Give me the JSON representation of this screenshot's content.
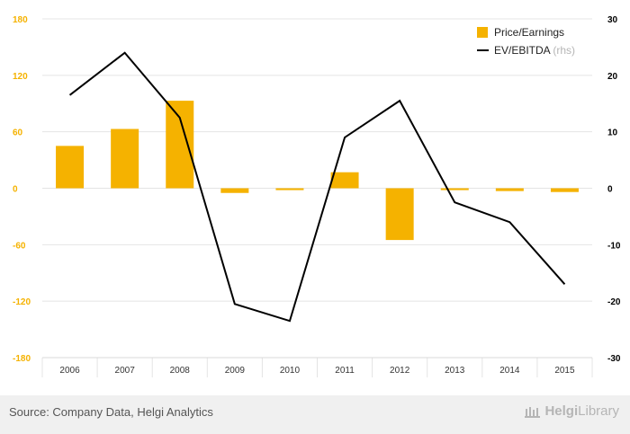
{
  "chart_data": {
    "type": "bar",
    "categories": [
      "2006",
      "2007",
      "2008",
      "2009",
      "2010",
      "2011",
      "2012",
      "2013",
      "2014",
      "2015"
    ],
    "series": [
      {
        "name": "Price/Earnings",
        "type": "bar",
        "axis": "left",
        "color": "#f5b200",
        "values": [
          45,
          63,
          93,
          -5,
          -2,
          17,
          -55,
          -2,
          -3,
          -4
        ]
      },
      {
        "name": "EV/EBITDA",
        "type": "line",
        "axis": "right",
        "color": "#000000",
        "values": [
          16.5,
          24,
          12.5,
          -20.5,
          -23.5,
          9,
          15.5,
          -2.5,
          -6,
          -17
        ]
      }
    ],
    "left_axis": {
      "min": -180,
      "max": 180,
      "ticks": [
        "180",
        "120",
        "60",
        "0",
        "-60",
        "-120",
        "-180"
      ],
      "tick_values": [
        180,
        120,
        60,
        0,
        -60,
        -120,
        -180
      ],
      "color": "#f5b200"
    },
    "right_axis": {
      "min": -30,
      "max": 30,
      "ticks": [
        "30",
        "20",
        "10",
        "0",
        "-10",
        "-20",
        "-30"
      ],
      "tick_values": [
        30,
        20,
        10,
        0,
        -10,
        -20,
        -30
      ],
      "color": "#000000"
    },
    "grid": true,
    "legend_position": "top-right",
    "legend": [
      {
        "label": "Price/Earnings",
        "suffix": ""
      },
      {
        "label": "EV/EBITDA",
        "suffix": "(rhs)"
      }
    ]
  },
  "footer": {
    "source": "Source: Company Data, Helgi Analytics",
    "brand_part1": "Helgi",
    "brand_part2": "Library"
  }
}
